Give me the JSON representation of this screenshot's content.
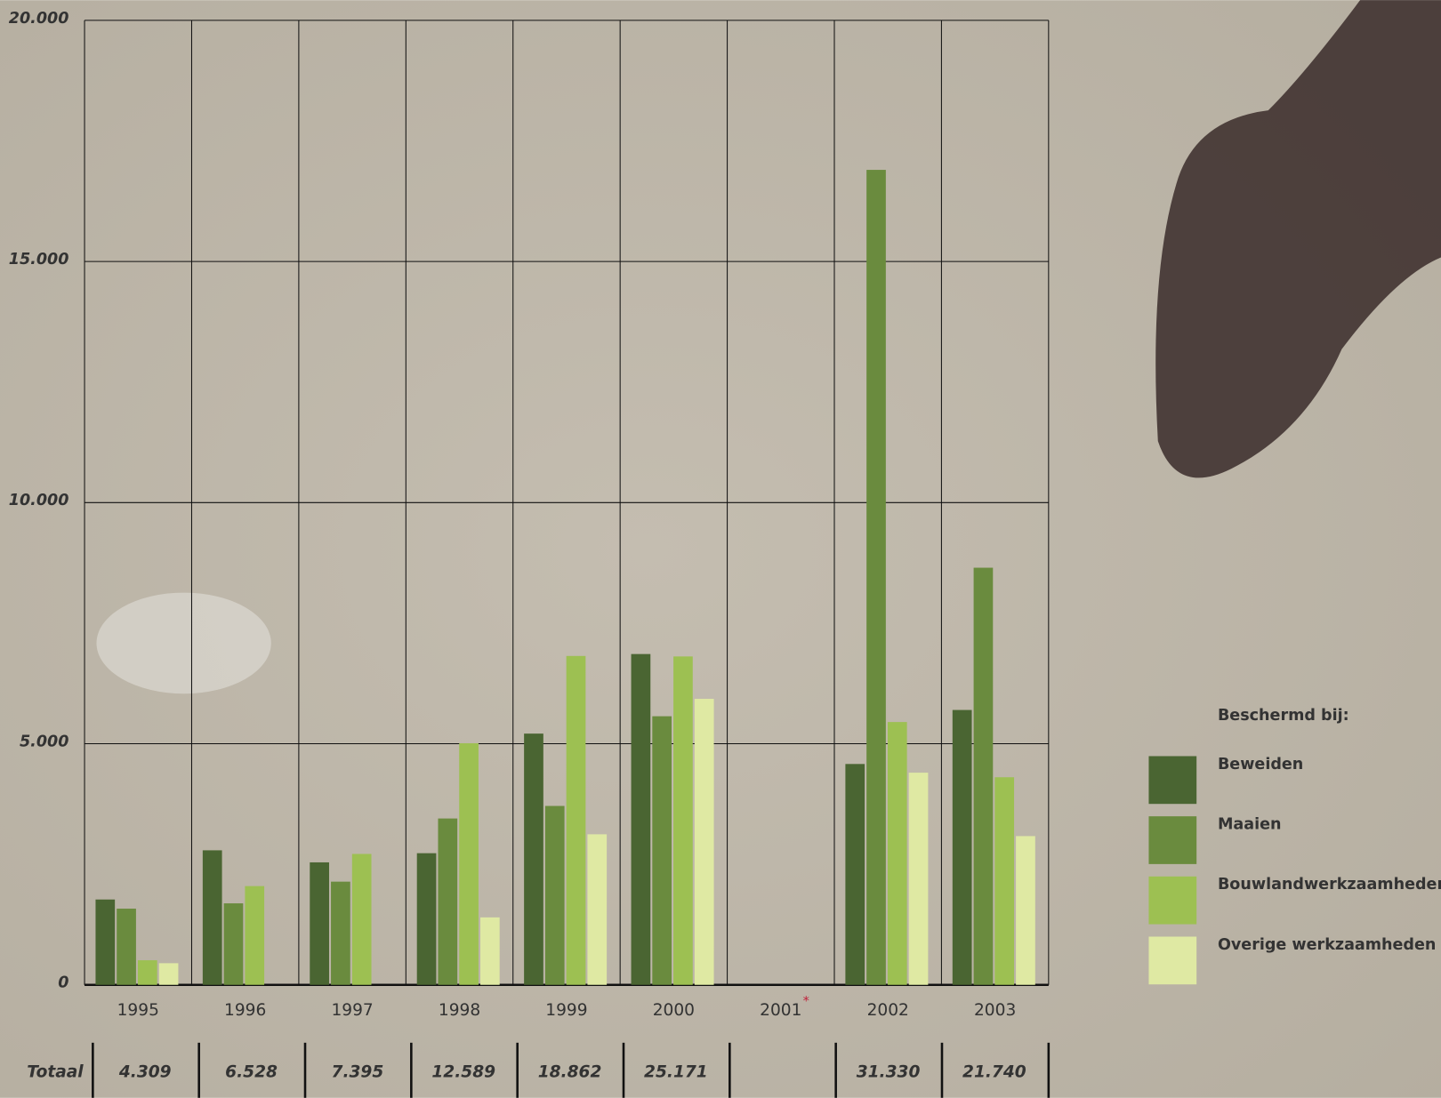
{
  "chart_data": {
    "type": "bar",
    "categories": [
      "1995",
      "1996",
      "1997",
      "1998",
      "1999",
      "2000",
      "2001",
      "2002",
      "2003"
    ],
    "category_notes": [
      null,
      null,
      null,
      null,
      null,
      null,
      "*",
      null,
      null
    ],
    "series": [
      {
        "name": "Beweiden",
        "color": "#4a6532",
        "values": [
          1770,
          2790,
          2540,
          2730,
          5210,
          6860,
          null,
          4580,
          5700
        ]
      },
      {
        "name": "Maaien",
        "color": "#6a8b3e",
        "values": [
          1580,
          1690,
          2140,
          3450,
          3710,
          5570,
          null,
          16900,
          8650
        ]
      },
      {
        "name": "Bouwlandwerkzaamheden",
        "color": "#9dc052",
        "values": [
          510,
          2048,
          2715,
          5010,
          6820,
          6810,
          null,
          5450,
          4305
        ]
      },
      {
        "name": "Overige werkzaamheden",
        "color": "#dfe9a3",
        "values": [
          449,
          null,
          null,
          1399,
          3122,
          5931,
          null,
          4400,
          3085
        ]
      }
    ],
    "legend_title": "Beschermd bij:",
    "totals_label": "Totaal",
    "totals": [
      "4.309",
      "6.528",
      "7.395",
      "12.589",
      "18.862",
      "25.171",
      null,
      "31.330",
      "21.740"
    ],
    "ylim": [
      0,
      20000
    ],
    "yticks": [
      0,
      {
        "value": 5000,
        "label": "5.000"
      },
      {
        "value": 10000,
        "label": "10.000"
      },
      {
        "value": 15000,
        "label": "15.000"
      },
      {
        "value": 20000,
        "label": "20.000"
      }
    ],
    "grid": true
  }
}
